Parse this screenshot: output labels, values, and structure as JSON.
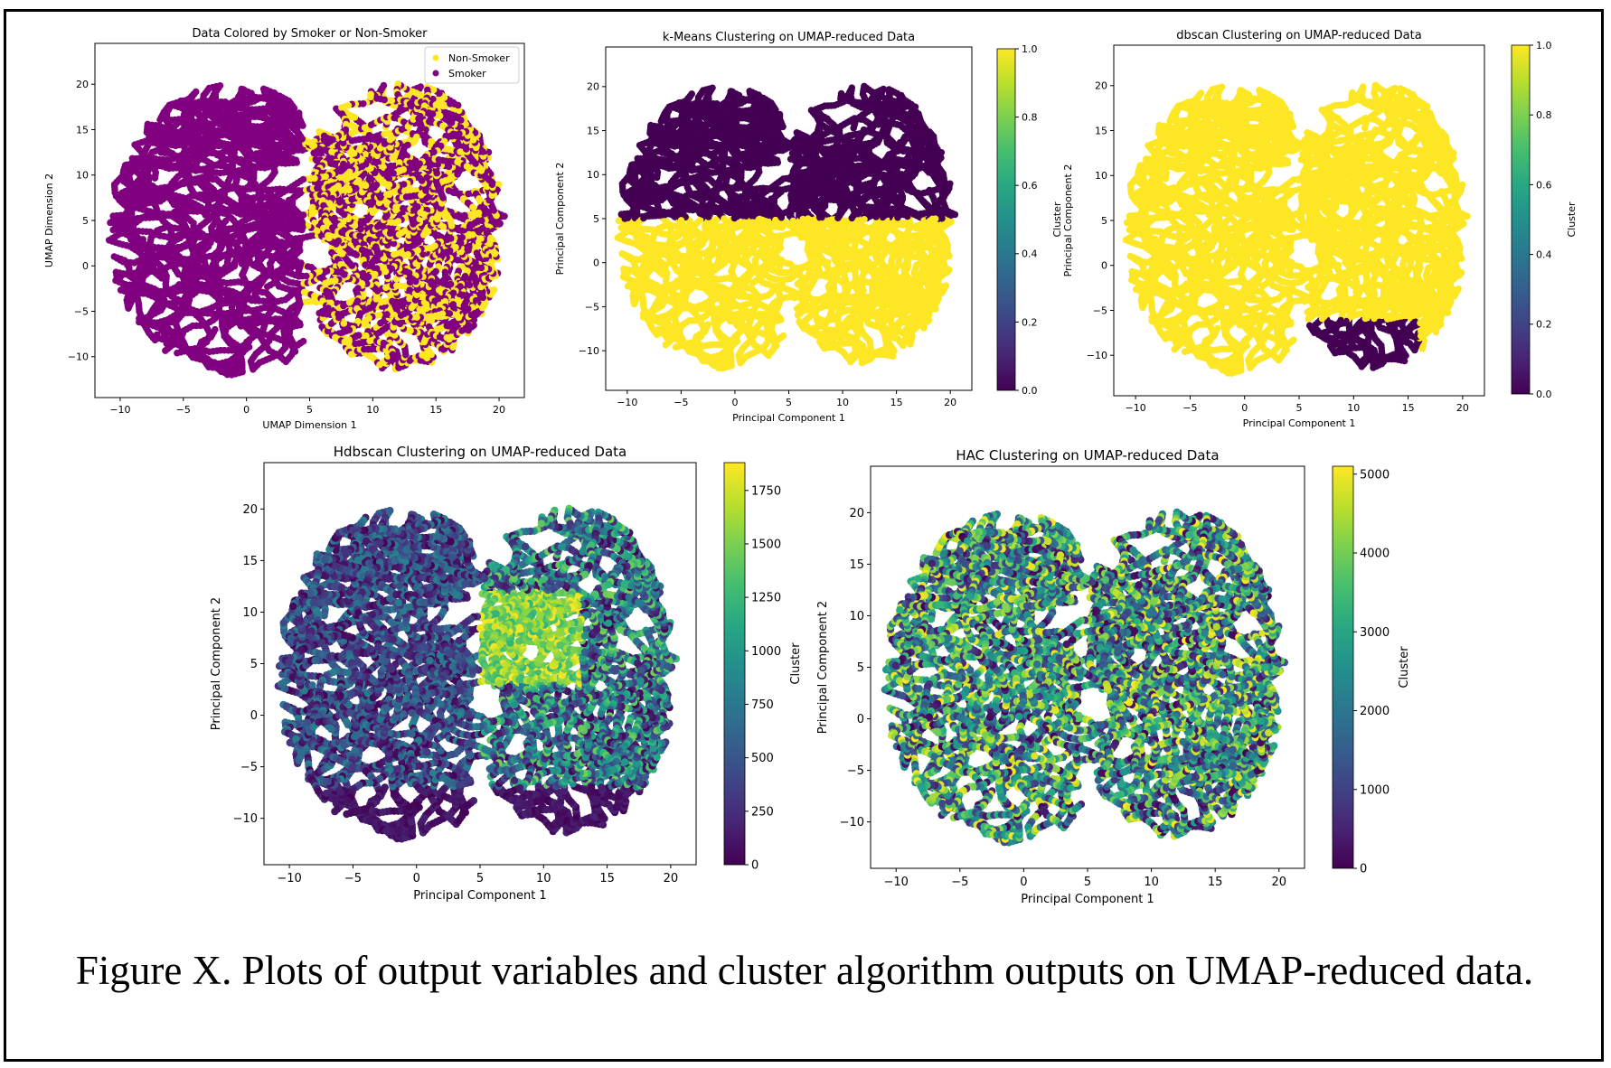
{
  "caption": "Figure X. Plots of output variables and cluster algorithm outputs on UMAP-reduced data.",
  "chart_data": [
    {
      "id": "smoker",
      "type": "scatter",
      "title": "Data Colored by Smoker or Non-Smoker",
      "xlabel": "UMAP Dimension 1",
      "ylabel": "UMAP Dimension 2",
      "xlim": [
        -12,
        22
      ],
      "ylim": [
        -14.5,
        24.5
      ],
      "xticks": [
        -10,
        -5,
        0,
        5,
        10,
        15,
        20
      ],
      "yticks": [
        -10,
        -5,
        0,
        5,
        10,
        15,
        20
      ],
      "legend": {
        "position": "top-right",
        "entries": [
          {
            "label": "Non-Smoker",
            "color": "#fde725"
          },
          {
            "label": "Smoker",
            "color": "#800080"
          }
        ]
      },
      "coloring": "binary",
      "categories": [
        "Non-Smoker",
        "Smoker"
      ],
      "clusters": [
        {
          "x_range": [
            -10,
            5
          ],
          "y_range": [
            -12,
            20
          ],
          "category": "Smoker"
        },
        {
          "x_range": [
            5,
            20
          ],
          "y_range": [
            -12,
            22
          ],
          "category": "Non-Smoker",
          "overlay": "Smoker"
        }
      ]
    },
    {
      "id": "kmeans",
      "type": "scatter",
      "title": "k-Means Clustering on UMAP-reduced Data",
      "xlabel": "Principal Component 1",
      "ylabel": "Principal Component 2",
      "xlim": [
        -12,
        22
      ],
      "ylim": [
        -14.5,
        24.5
      ],
      "xticks": [
        -10,
        -5,
        0,
        5,
        10,
        15,
        20
      ],
      "yticks": [
        -10,
        -5,
        0,
        5,
        10,
        15,
        20
      ],
      "colorbar": {
        "label": "Cluster",
        "min": 0.0,
        "max": 1.0,
        "ticks": [
          "0.0",
          "0.2",
          "0.4",
          "0.6",
          "0.8",
          "1.0"
        ]
      },
      "clusters": [
        {
          "region": "y > 5",
          "cluster": 0
        },
        {
          "region": "y <= 5",
          "cluster": 1
        }
      ]
    },
    {
      "id": "dbscan",
      "type": "scatter",
      "title": "dbscan Clustering on UMAP-reduced Data",
      "xlabel": "Principal Component 1",
      "ylabel": "Principal Component 2",
      "xlim": [
        -12,
        22
      ],
      "ylim": [
        -14.5,
        24.5
      ],
      "xticks": [
        -10,
        -5,
        0,
        5,
        10,
        15,
        20
      ],
      "yticks": [
        -10,
        -5,
        0,
        5,
        10,
        15,
        20
      ],
      "colorbar": {
        "label": "Cluster",
        "min": 0.0,
        "max": 1.0,
        "ticks": [
          "0.0",
          "0.2",
          "0.4",
          "0.6",
          "0.8",
          "1.0"
        ]
      },
      "clusters": [
        {
          "region": "main body",
          "cluster": 1
        },
        {
          "region": "lower-right loop, x 5-15, y -11 to -6",
          "cluster": 0
        }
      ]
    },
    {
      "id": "hdbscan",
      "type": "scatter",
      "title": "Hdbscan Clustering on UMAP-reduced Data",
      "xlabel": "Principal Component 1",
      "ylabel": "Principal Component 2",
      "xlim": [
        -12,
        22
      ],
      "ylim": [
        -14.5,
        24.5
      ],
      "xticks": [
        -10,
        -5,
        0,
        5,
        10,
        15,
        20
      ],
      "yticks": [
        -10,
        -5,
        0,
        5,
        10,
        15,
        20
      ],
      "colorbar": {
        "label": "Cluster",
        "min": 0,
        "max": 1880,
        "ticks": [
          "0",
          "250",
          "500",
          "750",
          "1000",
          "1250",
          "1500",
          "1750"
        ]
      },
      "clusters": [
        {
          "region": "left body",
          "cluster_range": [
            0,
            800
          ]
        },
        {
          "region": "right upper core, x 5-13, y 3-12",
          "cluster_range": [
            1300,
            1880
          ]
        },
        {
          "region": "right lower loops",
          "cluster_range": [
            0,
            200
          ]
        }
      ]
    },
    {
      "id": "hac",
      "type": "scatter",
      "title": "HAC Clustering on UMAP-reduced Data",
      "xlabel": "Principal Component 1",
      "ylabel": "Principal Component 2",
      "xlim": [
        -12,
        22
      ],
      "ylim": [
        -14.5,
        24.5
      ],
      "xticks": [
        -10,
        -5,
        0,
        5,
        10,
        15,
        20
      ],
      "yticks": [
        -10,
        -5,
        0,
        5,
        10,
        15,
        20
      ],
      "colorbar": {
        "label": "Cluster",
        "min": 0,
        "max": 5100,
        "ticks": [
          "0",
          "1000",
          "2000",
          "3000",
          "4000",
          "5000"
        ]
      },
      "clusters": [
        {
          "region": "whole body",
          "cluster_range": [
            0,
            5100
          ],
          "distribution": "mixed"
        }
      ]
    }
  ]
}
